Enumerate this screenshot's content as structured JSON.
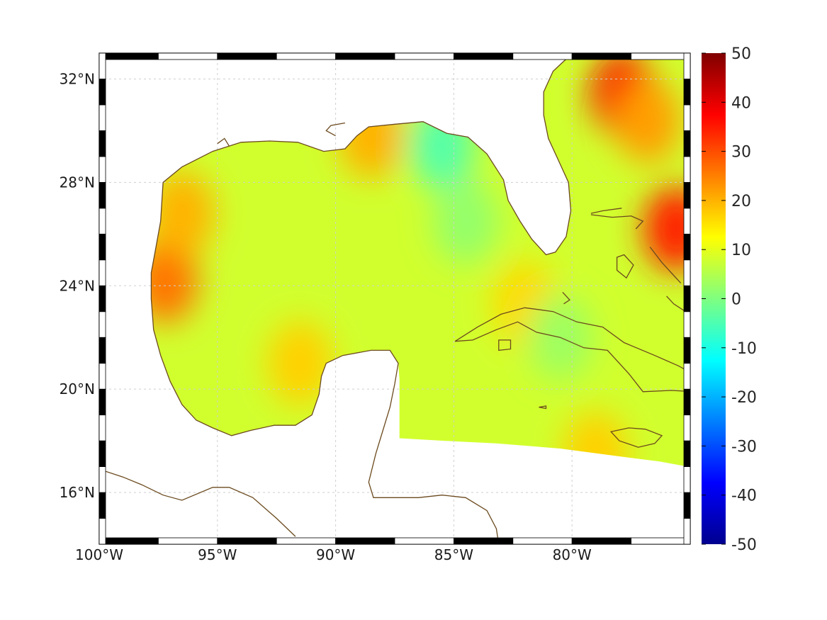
{
  "map": {
    "lon_range": [
      -100,
      -75
    ],
    "lat_range": [
      14,
      33
    ],
    "lon_ticks": [
      {
        "value": -100,
        "label": "100°W"
      },
      {
        "value": -95,
        "label": "95°W"
      },
      {
        "value": -90,
        "label": "90°W"
      },
      {
        "value": -85,
        "label": "85°W"
      },
      {
        "value": -80,
        "label": "80°W"
      }
    ],
    "lat_ticks": [
      {
        "value": 16,
        "label": "16°N"
      },
      {
        "value": 20,
        "label": "20°N"
      },
      {
        "value": 24,
        "label": "24°N"
      },
      {
        "value": 28,
        "label": "28°N"
      },
      {
        "value": 32,
        "label": "32°N"
      }
    ],
    "grid": true,
    "coastline_color": "#6b4a1e"
  },
  "colorbar": {
    "min": -50,
    "max": 50,
    "colormap": "jet",
    "ticks": [
      "50",
      "40",
      "30",
      "20",
      "10",
      "0",
      "-10",
      "-20",
      "-30",
      "-40",
      "-50"
    ]
  },
  "chart_data": {
    "type": "heatmap",
    "title": "",
    "xlabel": "",
    "ylabel": "",
    "background_value": 8,
    "anomalies": [
      {
        "lon": -97.2,
        "lat": 24.2,
        "value": 26
      },
      {
        "lon": -96.5,
        "lat": 26.8,
        "value": 20
      },
      {
        "lon": -77.8,
        "lat": 31.4,
        "value": 38
      },
      {
        "lon": -76.8,
        "lat": 30.4,
        "value": 22
      },
      {
        "lon": -75.6,
        "lat": 26.2,
        "value": 34
      },
      {
        "lon": -88.5,
        "lat": 29.8,
        "value": 20
      },
      {
        "lon": -85.5,
        "lat": 29.4,
        "value": -4
      },
      {
        "lon": -84.5,
        "lat": 26.5,
        "value": 2
      },
      {
        "lon": -91.5,
        "lat": 21.0,
        "value": 17
      },
      {
        "lon": -82.0,
        "lat": 23.3,
        "value": 16
      },
      {
        "lon": -79.0,
        "lat": 17.5,
        "value": 17
      },
      {
        "lon": -80.5,
        "lat": 22.0,
        "value": 3
      }
    ]
  }
}
